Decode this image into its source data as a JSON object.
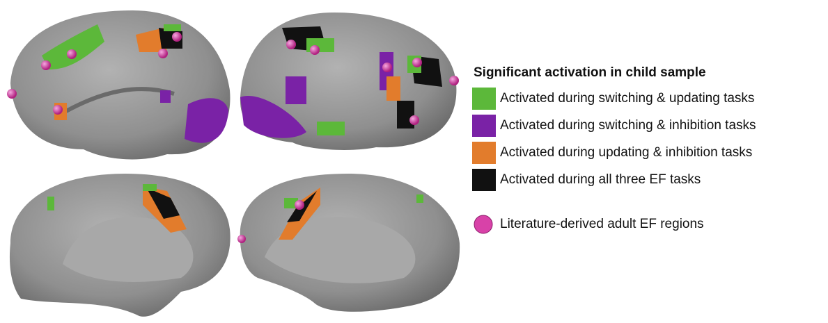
{
  "legend": {
    "title": "Significant activation in child sample",
    "items": [
      {
        "label": "Activated during switching & updating tasks",
        "color": "#5cb83a"
      },
      {
        "label": "Activated during switching & inhibition tasks",
        "color": "#7a22a6"
      },
      {
        "label": "Activated during updating & inhibition tasks",
        "color": "#e27c2c"
      },
      {
        "label": "Activated during all three EF tasks",
        "color": "#111111"
      }
    ],
    "marker": {
      "label": "Literature-derived adult EF regions",
      "color": "#d842a8"
    }
  }
}
